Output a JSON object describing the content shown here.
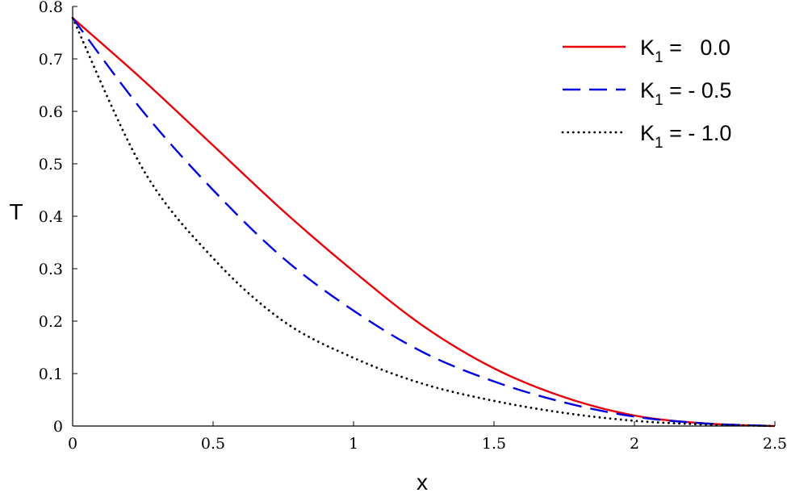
{
  "chart_data": {
    "type": "line",
    "xlabel": "x",
    "ylabel": "T",
    "xlim": [
      0,
      2.5
    ],
    "ylim": [
      0,
      0.8
    ],
    "x_ticks": [
      "0",
      "0.5",
      "1",
      "1.5",
      "2",
      "2.5"
    ],
    "y_ticks": [
      "0",
      "0.1",
      "0.2",
      "0.3",
      "0.4",
      "0.5",
      "0.6",
      "0.7",
      "0.8"
    ],
    "grid": false,
    "legend_position": "top-right",
    "series": [
      {
        "legend": {
          "base": "K",
          "sub": "1",
          "rest": " =   0.0"
        },
        "color": "#e8000b",
        "dash": "solid",
        "x": [
          0,
          0.25,
          0.5,
          0.75,
          1.0,
          1.25,
          1.5,
          1.75,
          2.0,
          2.25,
          2.5
        ],
        "y": [
          0.778,
          0.66,
          0.535,
          0.41,
          0.295,
          0.19,
          0.11,
          0.055,
          0.02,
          0.005,
          0.0
        ]
      },
      {
        "legend": {
          "base": "K",
          "sub": "1",
          "rest": " = - 0.5"
        },
        "color": "#0000e0",
        "dash": "dashed",
        "x": [
          0,
          0.25,
          0.5,
          0.75,
          1.0,
          1.25,
          1.5,
          1.75,
          2.0,
          2.25,
          2.5
        ],
        "y": [
          0.778,
          0.6,
          0.45,
          0.32,
          0.22,
          0.14,
          0.085,
          0.045,
          0.018,
          0.005,
          0.0
        ]
      },
      {
        "legend": {
          "base": "K",
          "sub": "1",
          "rest": " = - 1.0"
        },
        "color": "#000000",
        "dash": "dotted",
        "x": [
          0,
          0.25,
          0.5,
          0.75,
          1.0,
          1.25,
          1.5,
          1.75,
          2.0,
          2.25,
          2.5
        ],
        "y": [
          0.778,
          0.49,
          0.32,
          0.2,
          0.13,
          0.08,
          0.048,
          0.025,
          0.01,
          0.003,
          0.0
        ]
      }
    ]
  }
}
